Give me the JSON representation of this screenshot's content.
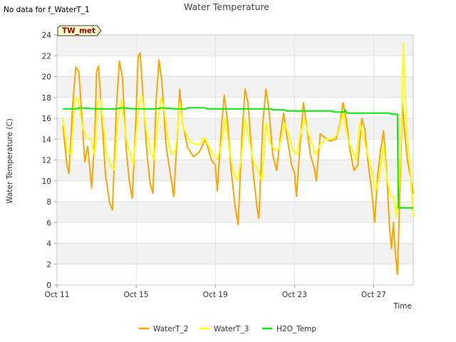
{
  "chart_data": {
    "type": "line",
    "title": "Water Temperature",
    "note": "No data for f_WaterT_1",
    "station_badge": "TW_met",
    "xlabel": "Time",
    "ylabel": "Water Temperature (C)",
    "ylim": [
      0,
      24
    ],
    "yticks": [
      0,
      2,
      4,
      6,
      8,
      10,
      12,
      14,
      16,
      18,
      20,
      22,
      24
    ],
    "xlim": [
      "Oct 11",
      "Oct 29"
    ],
    "xlim_days": [
      11,
      29
    ],
    "xticks": [
      {
        "label": "Oct 11",
        "day": 11
      },
      {
        "label": "Oct 15",
        "day": 15
      },
      {
        "label": "Oct 19",
        "day": 19
      },
      {
        "label": "Oct 23",
        "day": 23
      },
      {
        "label": "Oct 27",
        "day": 27
      }
    ],
    "grid": true,
    "legend_position": "bottom-center",
    "series": [
      {
        "name": "WaterT_2",
        "color": "#FFA500",
        "points": [
          [
            11.3,
            15.3
          ],
          [
            11.5,
            11.5
          ],
          [
            11.6,
            10.7
          ],
          [
            11.8,
            17.5
          ],
          [
            11.95,
            20.9
          ],
          [
            12.1,
            20.5
          ],
          [
            12.3,
            15.0
          ],
          [
            12.4,
            11.8
          ],
          [
            12.55,
            13.3
          ],
          [
            12.75,
            9.3
          ],
          [
            12.9,
            14.0
          ],
          [
            13.0,
            20.5
          ],
          [
            13.1,
            21.0
          ],
          [
            13.25,
            16.5
          ],
          [
            13.45,
            10.5
          ],
          [
            13.65,
            8.0
          ],
          [
            13.8,
            7.2
          ],
          [
            14.0,
            17.0
          ],
          [
            14.15,
            21.5
          ],
          [
            14.3,
            20.0
          ],
          [
            14.5,
            13.0
          ],
          [
            14.65,
            10.0
          ],
          [
            14.8,
            8.3
          ],
          [
            15.0,
            16.5
          ],
          [
            15.1,
            22.0
          ],
          [
            15.2,
            22.3
          ],
          [
            15.35,
            18.0
          ],
          [
            15.55,
            12.5
          ],
          [
            15.7,
            9.8
          ],
          [
            15.85,
            8.8
          ],
          [
            16.0,
            17.5
          ],
          [
            16.15,
            21.6
          ],
          [
            16.3,
            19.5
          ],
          [
            16.5,
            13.5
          ],
          [
            16.7,
            11.0
          ],
          [
            16.9,
            8.5
          ],
          [
            17.1,
            15.0
          ],
          [
            17.2,
            18.8
          ],
          [
            17.35,
            15.5
          ],
          [
            17.6,
            13.2
          ],
          [
            17.9,
            12.3
          ],
          [
            18.2,
            12.8
          ],
          [
            18.5,
            14.0
          ],
          [
            18.8,
            12.0
          ],
          [
            19.0,
            11.5
          ],
          [
            19.1,
            9.0
          ],
          [
            19.3,
            15.0
          ],
          [
            19.45,
            18.2
          ],
          [
            19.6,
            16.0
          ],
          [
            19.8,
            11.0
          ],
          [
            20.0,
            7.5
          ],
          [
            20.15,
            5.8
          ],
          [
            20.35,
            14.5
          ],
          [
            20.5,
            18.8
          ],
          [
            20.65,
            17.5
          ],
          [
            20.9,
            11.0
          ],
          [
            21.1,
            7.5
          ],
          [
            21.2,
            6.4
          ],
          [
            21.4,
            15.5
          ],
          [
            21.55,
            18.8
          ],
          [
            21.7,
            17.0
          ],
          [
            21.9,
            12.5
          ],
          [
            22.1,
            11.0
          ],
          [
            22.3,
            14.5
          ],
          [
            22.45,
            16.5
          ],
          [
            22.6,
            14.5
          ],
          [
            22.85,
            11.5
          ],
          [
            23.0,
            10.8
          ],
          [
            23.1,
            8.5
          ],
          [
            23.3,
            14.0
          ],
          [
            23.45,
            17.5
          ],
          [
            23.6,
            15.5
          ],
          [
            23.8,
            12.5
          ],
          [
            24.0,
            11.2
          ],
          [
            24.1,
            10.0
          ],
          [
            24.3,
            14.5
          ],
          [
            24.5,
            14.2
          ],
          [
            24.8,
            13.8
          ],
          [
            25.1,
            14.0
          ],
          [
            25.3,
            15.5
          ],
          [
            25.45,
            17.5
          ],
          [
            25.6,
            16.0
          ],
          [
            25.8,
            13.0
          ],
          [
            26.0,
            11.0
          ],
          [
            26.2,
            11.5
          ],
          [
            26.4,
            16.0
          ],
          [
            26.55,
            15.0
          ],
          [
            26.7,
            12.0
          ],
          [
            26.9,
            9.0
          ],
          [
            27.05,
            6.0
          ],
          [
            27.2,
            10.5
          ],
          [
            27.35,
            13.0
          ],
          [
            27.5,
            14.8
          ],
          [
            27.65,
            11.0
          ],
          [
            27.8,
            5.5
          ],
          [
            27.9,
            3.5
          ],
          [
            28.0,
            6.0
          ],
          [
            28.1,
            3.0
          ],
          [
            28.2,
            1.0
          ],
          [
            28.3,
            7.5
          ],
          [
            28.45,
            17.5
          ],
          [
            28.55,
            15.0
          ],
          [
            28.7,
            12.0
          ],
          [
            28.85,
            10.5
          ],
          [
            29.0,
            8.8
          ]
        ]
      },
      {
        "name": "WaterT_3",
        "color": "#FFFF00",
        "points": [
          [
            11.3,
            16.0
          ],
          [
            11.5,
            13.0
          ],
          [
            11.7,
            12.5
          ],
          [
            11.9,
            17.8
          ],
          [
            12.05,
            18.0
          ],
          [
            12.3,
            15.0
          ],
          [
            12.5,
            14.2
          ],
          [
            12.7,
            14.0
          ],
          [
            12.9,
            12.5
          ],
          [
            13.05,
            17.5
          ],
          [
            13.2,
            17.8
          ],
          [
            13.5,
            12.5
          ],
          [
            13.7,
            11.5
          ],
          [
            13.9,
            11.0
          ],
          [
            14.05,
            15.5
          ],
          [
            14.25,
            17.8
          ],
          [
            14.5,
            14.0
          ],
          [
            14.7,
            12.5
          ],
          [
            14.85,
            11.5
          ],
          [
            15.0,
            14.5
          ],
          [
            15.15,
            17.5
          ],
          [
            15.3,
            18.2
          ],
          [
            15.5,
            15.0
          ],
          [
            15.7,
            13.0
          ],
          [
            15.9,
            12.0
          ],
          [
            16.05,
            15.0
          ],
          [
            16.25,
            18.0
          ],
          [
            16.4,
            17.0
          ],
          [
            16.6,
            14.0
          ],
          [
            16.8,
            12.5
          ],
          [
            17.0,
            13.0
          ],
          [
            17.2,
            17.5
          ],
          [
            17.4,
            15.0
          ],
          [
            17.7,
            13.8
          ],
          [
            18.0,
            13.5
          ],
          [
            18.2,
            13.5
          ],
          [
            18.45,
            14.2
          ],
          [
            18.7,
            13.2
          ],
          [
            18.9,
            12.5
          ],
          [
            19.1,
            12.0
          ],
          [
            19.3,
            13.5
          ],
          [
            19.5,
            16.0
          ],
          [
            19.7,
            13.0
          ],
          [
            19.9,
            11.0
          ],
          [
            20.1,
            10.0
          ],
          [
            20.3,
            12.0
          ],
          [
            20.5,
            16.0
          ],
          [
            20.7,
            14.0
          ],
          [
            20.9,
            12.0
          ],
          [
            21.15,
            11.0
          ],
          [
            21.35,
            10.0
          ],
          [
            21.55,
            15.5
          ],
          [
            21.8,
            13.5
          ],
          [
            22.0,
            13.0
          ],
          [
            22.2,
            13.0
          ],
          [
            22.5,
            15.5
          ],
          [
            22.7,
            14.5
          ],
          [
            22.9,
            13.0
          ],
          [
            23.1,
            12.5
          ],
          [
            23.3,
            14.5
          ],
          [
            23.5,
            16.0
          ],
          [
            23.7,
            14.5
          ],
          [
            23.9,
            13.5
          ],
          [
            24.05,
            12.5
          ],
          [
            24.3,
            13.5
          ],
          [
            24.6,
            14.0
          ],
          [
            24.9,
            14.0
          ],
          [
            25.2,
            14.5
          ],
          [
            25.45,
            16.5
          ],
          [
            25.7,
            14.0
          ],
          [
            25.9,
            13.0
          ],
          [
            26.1,
            12.0
          ],
          [
            26.3,
            15.5
          ],
          [
            26.5,
            14.0
          ],
          [
            26.7,
            12.5
          ],
          [
            26.9,
            11.0
          ],
          [
            27.1,
            9.0
          ],
          [
            27.3,
            10.5
          ],
          [
            27.5,
            13.5
          ],
          [
            27.65,
            10.5
          ],
          [
            27.85,
            8.5
          ],
          [
            28.0,
            8.5
          ],
          [
            28.15,
            6.5
          ],
          [
            28.3,
            10.0
          ],
          [
            28.4,
            15.0
          ],
          [
            28.5,
            23.2
          ],
          [
            28.6,
            18.0
          ],
          [
            28.7,
            14.0
          ],
          [
            28.85,
            11.0
          ],
          [
            29.0,
            6.5
          ]
        ]
      },
      {
        "name": "H2O_Temp",
        "color": "#00EE00",
        "points": [
          [
            11.3,
            16.9
          ],
          [
            12.0,
            16.9
          ],
          [
            12.1,
            17.0
          ],
          [
            13.0,
            16.9
          ],
          [
            14.0,
            16.9
          ],
          [
            14.2,
            17.0
          ],
          [
            15.0,
            16.9
          ],
          [
            16.0,
            16.9
          ],
          [
            16.3,
            17.0
          ],
          [
            17.0,
            16.9
          ],
          [
            17.5,
            16.9
          ],
          [
            17.6,
            17.0
          ],
          [
            18.5,
            17.0
          ],
          [
            18.6,
            16.9
          ],
          [
            20.0,
            16.9
          ],
          [
            21.0,
            16.9
          ],
          [
            21.8,
            16.9
          ],
          [
            21.9,
            16.8
          ],
          [
            22.5,
            16.8
          ],
          [
            22.6,
            16.7
          ],
          [
            23.3,
            16.7
          ],
          [
            23.4,
            16.7
          ],
          [
            24.0,
            16.7
          ],
          [
            24.9,
            16.7
          ],
          [
            25.0,
            16.6
          ],
          [
            25.5,
            16.6
          ],
          [
            25.55,
            16.8
          ],
          [
            25.65,
            16.5
          ],
          [
            26.0,
            16.5
          ],
          [
            27.0,
            16.5
          ],
          [
            27.8,
            16.5
          ],
          [
            27.9,
            16.4
          ],
          [
            28.2,
            16.4
          ],
          [
            28.25,
            7.4
          ],
          [
            29.0,
            7.4
          ]
        ]
      }
    ]
  }
}
